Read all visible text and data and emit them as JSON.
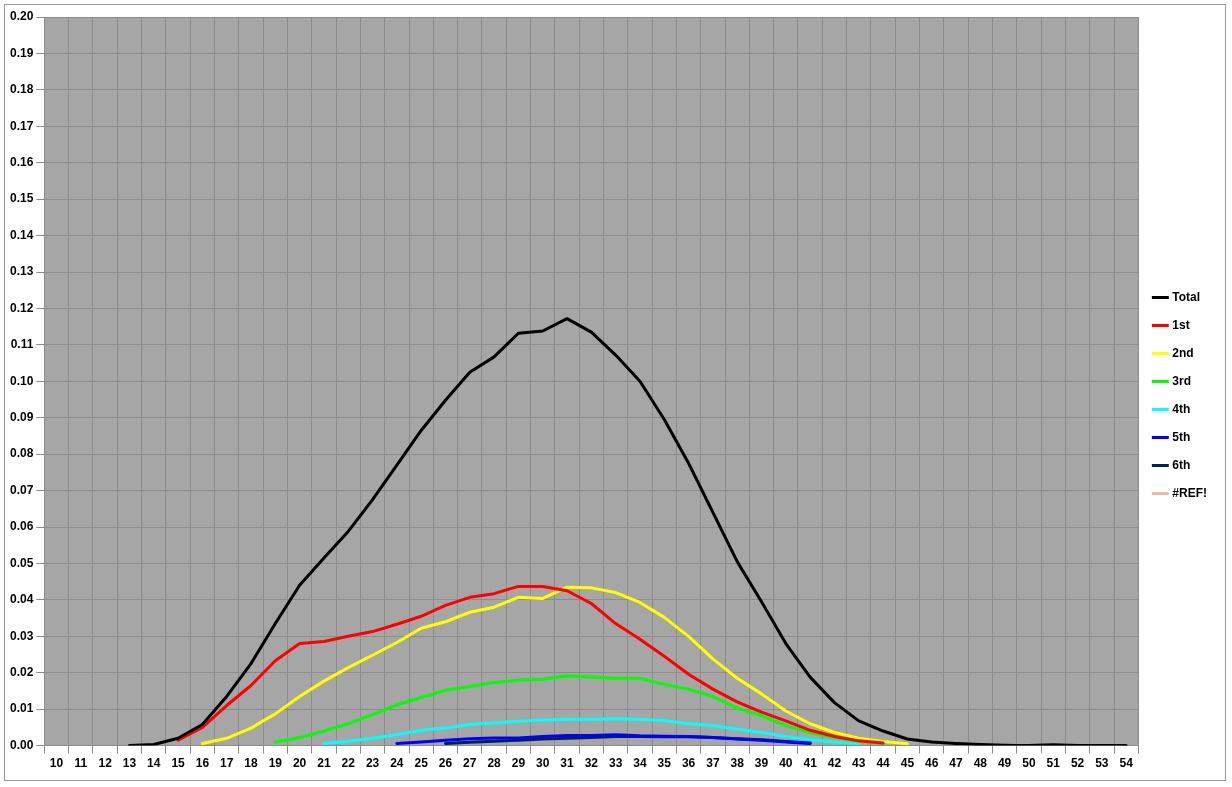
{
  "chart_data": {
    "type": "line",
    "categories": [
      "10",
      "11",
      "12",
      "13",
      "14",
      "15",
      "16",
      "17",
      "18",
      "19",
      "20",
      "21",
      "22",
      "23",
      "24",
      "25",
      "26",
      "27",
      "28",
      "29",
      "30",
      "31",
      "32",
      "33",
      "34",
      "35",
      "36",
      "37",
      "38",
      "39",
      "40",
      "41",
      "42",
      "43",
      "44",
      "45",
      "46",
      "47",
      "48",
      "49",
      "50",
      "51",
      "52",
      "53",
      "54"
    ],
    "series": [
      {
        "name": "Total",
        "color": "#000000",
        "values": [
          null,
          null,
          null,
          0,
          0.0003,
          0.002,
          0.0058,
          0.0135,
          0.0225,
          0.0335,
          0.044,
          0.0515,
          0.0588,
          0.0675,
          0.077,
          0.0865,
          0.0948,
          0.1025,
          0.1067,
          0.1132,
          0.1138,
          0.1172,
          0.1135,
          0.1072,
          0.1,
          0.0895,
          0.0775,
          0.064,
          0.0505,
          0.0395,
          0.028,
          0.0188,
          0.0118,
          0.0068,
          0.004,
          0.0018,
          0.001,
          0.0006,
          0.0003,
          0.0001,
          0,
          0.0002,
          0,
          0,
          0
        ]
      },
      {
        "name": "1st",
        "color": "#ff0000",
        "values": [
          null,
          null,
          null,
          null,
          null,
          0.0015,
          0.005,
          0.011,
          0.0165,
          0.0233,
          0.028,
          0.0286,
          0.03,
          0.0313,
          0.0333,
          0.0355,
          0.0385,
          0.0407,
          0.0417,
          0.0437,
          0.0437,
          0.0425,
          0.039,
          0.0335,
          0.0292,
          0.0245,
          0.0196,
          0.0155,
          0.012,
          0.0092,
          0.0068,
          0.0042,
          0.0025,
          0.0013,
          0.0007,
          null,
          null,
          null,
          null,
          null,
          null,
          null,
          null,
          null,
          null
        ]
      },
      {
        "name": "2nd",
        "color": "#ffff00",
        "values": [
          null,
          null,
          null,
          null,
          null,
          null,
          0.0006,
          0.002,
          0.0048,
          0.0087,
          0.0135,
          0.0177,
          0.0214,
          0.0248,
          0.0283,
          0.0322,
          0.034,
          0.0366,
          0.038,
          0.0407,
          0.0404,
          0.0435,
          0.0433,
          0.042,
          0.0393,
          0.0352,
          0.03,
          0.0238,
          0.0185,
          0.0142,
          0.0095,
          0.006,
          0.0036,
          0.002,
          0.0011,
          0.0005,
          null,
          null,
          null,
          null,
          null,
          null,
          null,
          null,
          null
        ]
      },
      {
        "name": "3rd",
        "color": "#00ff00",
        "values": [
          null,
          null,
          null,
          null,
          null,
          null,
          null,
          null,
          null,
          0.001,
          0.0022,
          0.004,
          0.006,
          0.0085,
          0.0112,
          0.0132,
          0.0152,
          0.0162,
          0.0173,
          0.018,
          0.0182,
          0.0192,
          0.0188,
          0.0185,
          0.0185,
          0.0168,
          0.0155,
          0.0135,
          0.0103,
          0.0082,
          0.0055,
          0.0035,
          0.0022,
          0.0012,
          0.0006,
          null,
          null,
          null,
          null,
          null,
          null,
          null,
          null,
          null,
          null
        ]
      },
      {
        "name": "4th",
        "color": "#00ffff",
        "values": [
          null,
          null,
          null,
          null,
          null,
          null,
          null,
          null,
          null,
          null,
          null,
          0.0006,
          0.0012,
          0.002,
          0.003,
          0.0042,
          0.0048,
          0.0058,
          0.0062,
          0.0067,
          0.007,
          0.0072,
          0.0072,
          0.0074,
          0.0072,
          0.0069,
          0.006,
          0.0055,
          0.0045,
          0.0036,
          0.0025,
          0.0017,
          0.001,
          0.0005,
          null,
          null,
          null,
          null,
          null,
          null,
          null,
          null,
          null,
          null,
          null
        ]
      },
      {
        "name": "5th",
        "color": "#0000ff",
        "values": [
          null,
          null,
          null,
          null,
          null,
          null,
          null,
          null,
          null,
          null,
          null,
          null,
          null,
          null,
          0.0006,
          0.001,
          0.0015,
          0.0019,
          0.0021,
          0.0021,
          0.0025,
          0.0028,
          0.0028,
          0.003,
          0.0027,
          0.0026,
          0.0025,
          0.0022,
          0.0018,
          0.0015,
          0.001,
          0.0006,
          null,
          null,
          null,
          null,
          null,
          null,
          null,
          null,
          null,
          null,
          null,
          null,
          null
        ]
      },
      {
        "name": "6th",
        "color": "#002060",
        "values": [
          null,
          null,
          null,
          null,
          null,
          null,
          null,
          null,
          null,
          null,
          null,
          null,
          null,
          null,
          null,
          null,
          0.0006,
          0.0009,
          0.0012,
          0.0015,
          0.0018,
          0.002,
          0.0022,
          0.0025,
          0.0025,
          0.0024,
          0.0024,
          0.0022,
          0.0019,
          0.0016,
          0.0011,
          0.0007,
          null,
          null,
          null,
          null,
          null,
          null,
          null,
          null,
          null,
          null,
          null,
          null,
          null
        ]
      },
      {
        "name": "#REF!",
        "color": "#f4b69c",
        "values": [
          null,
          null,
          null,
          null,
          null,
          null,
          null,
          null,
          null,
          null,
          null,
          null,
          null,
          null,
          null,
          null,
          null,
          null,
          null,
          null,
          null,
          null,
          null,
          null,
          null,
          null,
          null,
          null,
          null,
          null,
          null,
          null,
          null,
          null,
          null,
          null,
          null,
          null,
          null,
          null,
          null,
          null,
          null,
          null,
          null
        ]
      }
    ],
    "ylim": [
      0,
      0.2
    ],
    "yticks": [
      {
        "value": 0,
        "label": "0.00"
      },
      {
        "value": 0.01,
        "label": "0.01"
      },
      {
        "value": 0.02,
        "label": "0.02"
      },
      {
        "value": 0.03,
        "label": "0.03"
      },
      {
        "value": 0.04,
        "label": "0.04"
      },
      {
        "value": 0.05,
        "label": "0.05"
      },
      {
        "value": 0.06,
        "label": "0.06"
      },
      {
        "value": 0.07,
        "label": "0.07"
      },
      {
        "value": 0.08,
        "label": "0.08"
      },
      {
        "value": 0.09,
        "label": "0.09"
      },
      {
        "value": 0.1,
        "label": "0.10"
      },
      {
        "value": 0.11,
        "label": "0.11"
      },
      {
        "value": 0.12,
        "label": "0.12"
      },
      {
        "value": 0.13,
        "label": "0.13"
      },
      {
        "value": 0.14,
        "label": "0.14"
      },
      {
        "value": 0.15,
        "label": "0.15"
      },
      {
        "value": 0.16,
        "label": "0.16"
      },
      {
        "value": 0.17,
        "label": "0.17"
      },
      {
        "value": 0.18,
        "label": "0.18"
      },
      {
        "value": 0.19,
        "label": "0.19"
      },
      {
        "value": 0.2,
        "label": "0.20"
      }
    ],
    "grid": true,
    "legend": "right",
    "marker": "none",
    "line_style": "solid"
  }
}
